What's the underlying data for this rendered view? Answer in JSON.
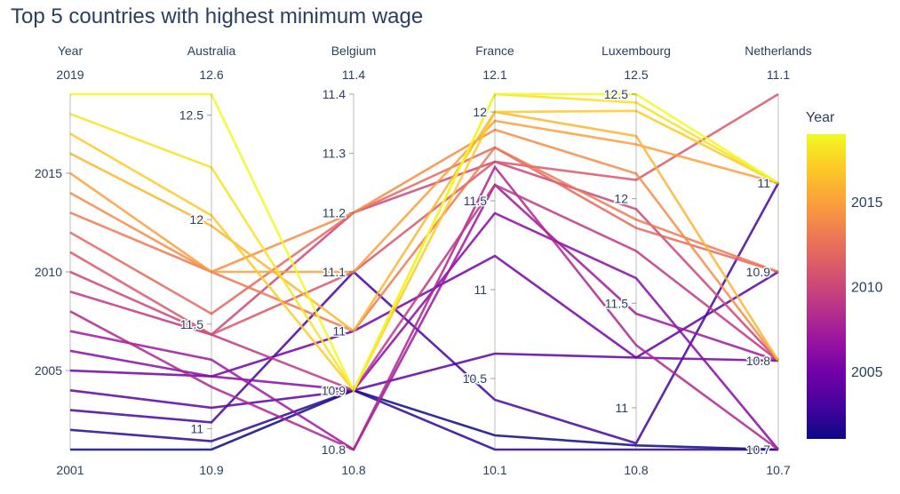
{
  "chart_data": {
    "type": "parallel-coordinates",
    "title": "Top 5 countries with highest minimum wage",
    "colorbar": {
      "title": "Year",
      "range": [
        2001,
        2019
      ],
      "ticks": [
        2005,
        2010,
        2015
      ],
      "colorscale": "plasma"
    },
    "dimensions": [
      {
        "label": "Year",
        "range": [
          2001,
          2019
        ],
        "ticks": [
          2005,
          2010,
          2015
        ],
        "tick_labels": [
          "2005",
          "2010",
          "2015"
        ],
        "top_label": "2019",
        "bottom_label": "2001"
      },
      {
        "label": "Australia",
        "range": [
          10.9,
          12.6
        ],
        "ticks": [
          11,
          11.5,
          12,
          12.5
        ],
        "tick_labels": [
          "11",
          "11.5",
          "12",
          "12.5"
        ],
        "top_label": "12.6",
        "bottom_label": "10.9"
      },
      {
        "label": "Belgium",
        "range": [
          10.8,
          11.4
        ],
        "ticks": [
          10.8,
          10.9,
          11,
          11.1,
          11.2,
          11.3,
          11.4
        ],
        "tick_labels": [
          "10.8",
          "10.9",
          "11",
          "11.1",
          "11.2",
          "11.3",
          "11.4"
        ],
        "top_label": "11.4",
        "bottom_label": "10.8"
      },
      {
        "label": "France",
        "range": [
          10.1,
          12.1
        ],
        "ticks": [
          10.5,
          11,
          11.5,
          12
        ],
        "tick_labels": [
          "10.5",
          "11",
          "11.5",
          "12"
        ],
        "top_label": "12.1",
        "bottom_label": "10.1"
      },
      {
        "label": "Luxembourg",
        "range": [
          10.8,
          12.5
        ],
        "ticks": [
          11,
          11.5,
          12,
          12.5
        ],
        "tick_labels": [
          "11",
          "11.5",
          "12",
          "12.5"
        ],
        "top_label": "12.5",
        "bottom_label": "10.8"
      },
      {
        "label": "Netherlands",
        "range": [
          10.7,
          11.1
        ],
        "ticks": [
          10.7,
          10.8,
          10.9,
          11
        ],
        "tick_labels": [
          "10.7",
          "10.8",
          "10.9",
          "11"
        ],
        "top_label": "11.1",
        "bottom_label": "10.7"
      }
    ],
    "records": [
      {
        "year": 2001,
        "values": [
          2001,
          10.9,
          10.9,
          10.18,
          10.82,
          10.7
        ]
      },
      {
        "year": 2002,
        "values": [
          2002,
          10.94,
          10.9,
          10.1,
          10.8,
          10.7
        ]
      },
      {
        "year": 2003,
        "values": [
          2003,
          11.03,
          11.1,
          10.38,
          10.83,
          11.0
        ]
      },
      {
        "year": 2004,
        "values": [
          2004,
          11.1,
          10.9,
          10.64,
          11.24,
          10.9
        ]
      },
      {
        "year": 2005,
        "values": [
          2005,
          11.25,
          11.0,
          11.19,
          11.24,
          10.8
        ]
      },
      {
        "year": 2006,
        "values": [
          2006,
          11.25,
          10.9,
          11.43,
          11.62,
          10.7
        ]
      },
      {
        "year": 2007,
        "values": [
          2007,
          11.33,
          10.8,
          11.59,
          11.45,
          10.8
        ]
      },
      {
        "year": 2008,
        "values": [
          2008,
          11.2,
          10.8,
          11.69,
          11.3,
          10.7
        ]
      },
      {
        "year": 2009,
        "values": [
          2009,
          11.45,
          10.9,
          11.59,
          11.75,
          10.8
        ]
      },
      {
        "year": 2010,
        "values": [
          2010,
          11.45,
          11.2,
          11.72,
          11.95,
          10.8
        ]
      },
      {
        "year": 2011,
        "values": [
          2011,
          11.45,
          11.1,
          11.72,
          12.09,
          11.1
        ]
      },
      {
        "year": 2012,
        "values": [
          2012,
          11.55,
          11.2,
          11.8,
          11.86,
          10.9
        ]
      },
      {
        "year": 2013,
        "values": [
          2013,
          11.75,
          11.0,
          11.8,
          11.9,
          10.9
        ]
      },
      {
        "year": 2014,
        "values": [
          2014,
          11.75,
          11.2,
          11.9,
          12.12,
          10.8
        ]
      },
      {
        "year": 2015,
        "values": [
          2015,
          11.75,
          11.1,
          11.95,
          12.26,
          11.0
        ]
      },
      {
        "year": 2016,
        "values": [
          2016,
          11.97,
          11.0,
          12.0,
          12.3,
          10.8
        ]
      },
      {
        "year": 2017,
        "values": [
          2017,
          12.02,
          10.9,
          12.0,
          12.42,
          11.0
        ]
      },
      {
        "year": 2018,
        "values": [
          2018,
          12.25,
          10.9,
          12.1,
          12.46,
          11.0
        ]
      },
      {
        "year": 2019,
        "values": [
          2019,
          12.6,
          10.9,
          12.1,
          12.5,
          11.0
        ]
      }
    ]
  }
}
